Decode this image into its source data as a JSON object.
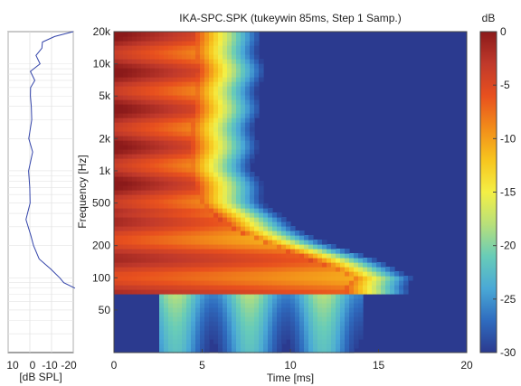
{
  "chart_data": [
    {
      "type": "line",
      "panel": "side-spectrum",
      "xlabel": "[dB SPL]",
      "x_ticks": [
        "10",
        "0",
        "-10",
        "-20"
      ],
      "xlim": [
        10,
        -20
      ],
      "ylim_hz": [
        20,
        20000
      ],
      "y_scale": "log",
      "grid": true,
      "series": [
        {
          "color": "#3344aa",
          "points": [
            {
              "hz": 20000,
              "db": -20
            },
            {
              "hz": 18000,
              "db": -12
            },
            {
              "hz": 16000,
              "db": -5
            },
            {
              "hz": 14000,
              "db": -6
            },
            {
              "hz": 12000,
              "db": -3
            },
            {
              "hz": 10000,
              "db": -4
            },
            {
              "hz": 8500,
              "db": -1
            },
            {
              "hz": 7000,
              "db": -2
            },
            {
              "hz": 6000,
              "db": 0
            },
            {
              "hz": 5000,
              "db": -1
            },
            {
              "hz": 4000,
              "db": 0
            },
            {
              "hz": 3000,
              "db": -1
            },
            {
              "hz": 2000,
              "db": 0
            },
            {
              "hz": 1500,
              "db": -0.5
            },
            {
              "hz": 1000,
              "db": 0
            },
            {
              "hz": 700,
              "db": 0
            },
            {
              "hz": 500,
              "db": 0.5
            },
            {
              "hz": 350,
              "db": 1
            },
            {
              "hz": 250,
              "db": 0
            },
            {
              "hz": 200,
              "db": -1.5
            },
            {
              "hz": 150,
              "db": -5
            },
            {
              "hz": 120,
              "db": -9
            },
            {
              "hz": 100,
              "db": -14
            },
            {
              "hz": 90,
              "db": -16
            },
            {
              "hz": 80,
              "db": -20
            }
          ]
        }
      ]
    },
    {
      "type": "heatmap",
      "panel": "spectrogram",
      "title": "IKA-SPC.SPK (tukeywin 85ms, Step 1 Samp.)",
      "xlabel": "Time [ms]",
      "ylabel": "Frequency [Hz]",
      "xlim": [
        0,
        20
      ],
      "x_ticks": [
        "0",
        "5",
        "10",
        "15",
        "20"
      ],
      "ylim": [
        20,
        20000
      ],
      "y_scale": "log",
      "y_ticks": [
        "20k",
        "10k",
        "5k",
        "2k",
        "1k",
        "500",
        "200",
        "100",
        "50"
      ],
      "clim": [
        -30,
        0
      ],
      "background_color": "#2b3a8f",
      "decay_front_ms": [
        {
          "hz": 20000,
          "ms": 4.5
        },
        {
          "hz": 10000,
          "ms": 4.8
        },
        {
          "hz": 5000,
          "ms": 4.6
        },
        {
          "hz": 2000,
          "ms": 4.4
        },
        {
          "hz": 1000,
          "ms": 4.3
        },
        {
          "hz": 500,
          "ms": 5.0
        },
        {
          "hz": 300,
          "ms": 6.5
        },
        {
          "hz": 200,
          "ms": 9.0
        },
        {
          "hz": 150,
          "ms": 11.0
        },
        {
          "hz": 120,
          "ms": 12.5
        },
        {
          "hz": 100,
          "ms": 13.5
        },
        {
          "hz": 80,
          "ms": 13.0
        }
      ],
      "colorbar": {
        "label": "dB",
        "ticks": [
          "0",
          "-5",
          "-10",
          "-15",
          "-20",
          "-25",
          "-30"
        ],
        "colors": [
          "#8b1a1a",
          "#c0392b",
          "#e8501e",
          "#f28c1a",
          "#f7c51e",
          "#f4ef45",
          "#b8e07a",
          "#68ccb8",
          "#4aa9d6",
          "#2f6cbf",
          "#2b3a8f"
        ]
      }
    }
  ]
}
